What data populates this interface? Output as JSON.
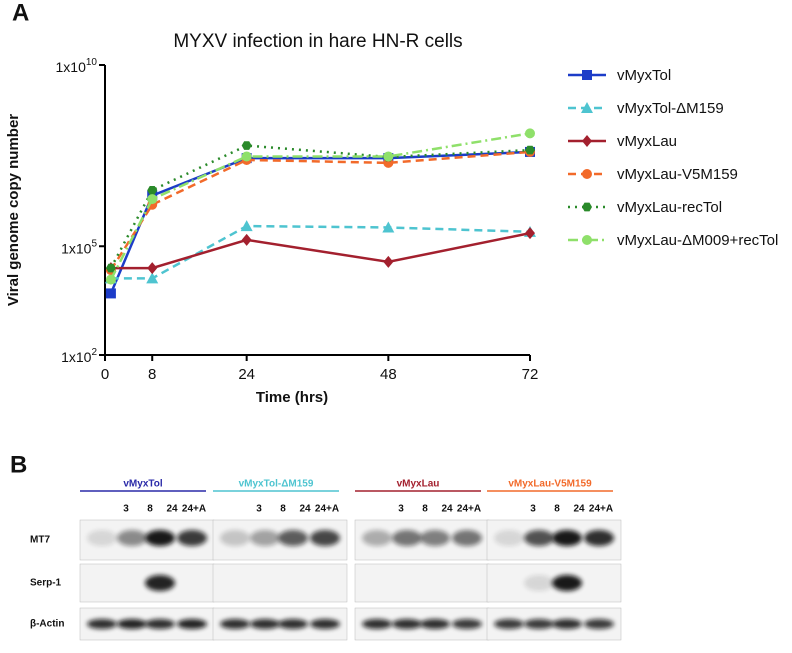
{
  "panel_labels": [
    "A",
    "B"
  ],
  "chart_data": {
    "type": "line",
    "title": "MYXV infection in hare HN-R cells",
    "x_label": "Time (hrs)",
    "y_label": "Viral genome copy number",
    "x": [
      1,
      8,
      24,
      48,
      72
    ],
    "xlim": [
      0,
      72
    ],
    "xticks": [
      0,
      8,
      24,
      48,
      72
    ],
    "yscale": "log",
    "ylim": [
      100,
      10000000000
    ],
    "yticks": [
      {
        "value": 100,
        "label": "1x10",
        "sup": "2"
      },
      {
        "value": 100000,
        "label": "1x10",
        "sup": "5"
      },
      {
        "value": 10000000000,
        "label": "1x10",
        "sup": "10"
      }
    ],
    "legend": "right",
    "series": [
      {
        "name": "vMyxTol",
        "color": "#1c3cc8",
        "linestyle": "solid",
        "marker": "square",
        "values": [
          5000,
          2500000,
          27000000,
          27000000,
          40000000
        ]
      },
      {
        "name": "vMyxTol-ΔM159",
        "color": "#4ec4d0",
        "linestyle": "dashed",
        "marker": "triangle",
        "values": [
          13000,
          13000,
          360000,
          330000,
          250000
        ]
      },
      {
        "name": "vMyxLau",
        "color": "#a3202e",
        "linestyle": "solid",
        "marker": "diamond",
        "values": [
          25000,
          25000,
          150000,
          37000,
          230000
        ]
      },
      {
        "name": "vMyxLau-V5M159",
        "color": "#f26a2a",
        "linestyle": "dashed",
        "marker": "circle",
        "values": [
          22000,
          1400000,
          24000000,
          20000000,
          40000000
        ]
      },
      {
        "name": "vMyxLau-recTol",
        "color": "#2a8a2a",
        "linestyle": "dotted",
        "marker": "hexagon",
        "values": [
          25000,
          3500000,
          60000000,
          29000000,
          45000000
        ]
      },
      {
        "name": "vMyxLau-ΔM009+recTol",
        "color": "#8fe06a",
        "linestyle": "dashdot",
        "marker": "circle",
        "values": [
          12000,
          2000000,
          30000000,
          30000000,
          130000000
        ]
      }
    ]
  },
  "blot": {
    "groups": [
      {
        "name": "vMyxTol",
        "color": "#2a2aa8"
      },
      {
        "name": "vMyxTol-ΔM159",
        "color": "#4ec4d0"
      },
      {
        "name": "vMyxLau",
        "color": "#a3202e"
      },
      {
        "name": "vMyxLau-V5M159",
        "color": "#f26a2a"
      }
    ],
    "lanes": [
      "3",
      "8",
      "24",
      "24+A"
    ],
    "rows": [
      "MT7",
      "Serp-1",
      "β-Actin"
    ]
  }
}
